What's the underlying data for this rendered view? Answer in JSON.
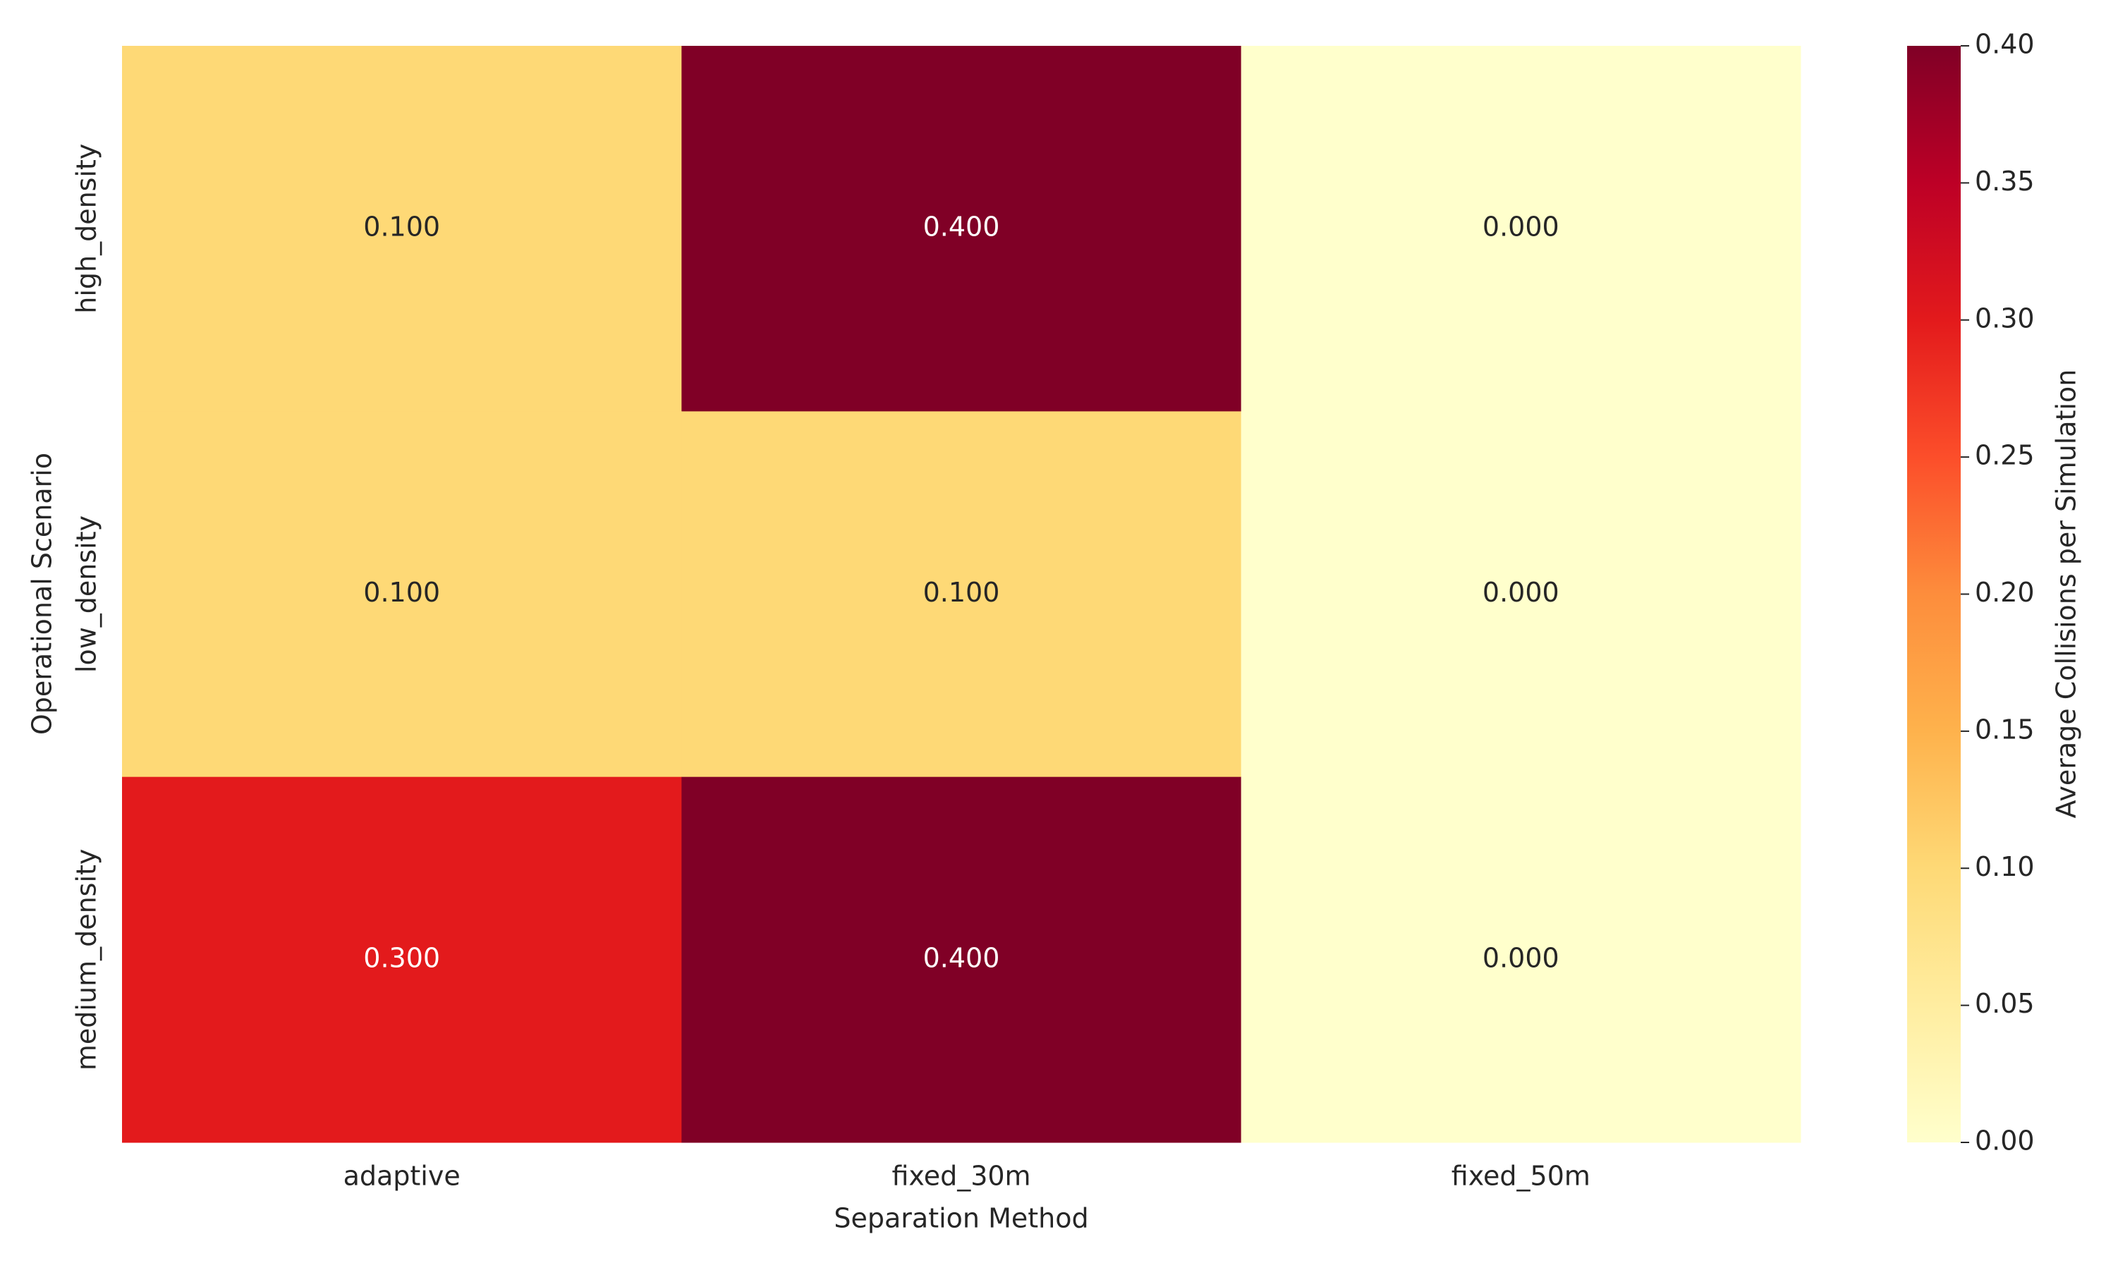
{
  "chart_data": {
    "type": "heatmap",
    "x_label": "Separation Method",
    "y_label": "Operational Scenario",
    "colorbar_label": "Average Collisions per Simulation",
    "categories": [
      "adaptive",
      "fixed_30m",
      "fixed_50m"
    ],
    "y_categories": [
      "high_density",
      "low_density",
      "medium_density"
    ],
    "values": [
      [
        0.1,
        0.4,
        0.0
      ],
      [
        0.1,
        0.1,
        0.0
      ],
      [
        0.3,
        0.4,
        0.0
      ]
    ],
    "value_labels": [
      [
        "0.100",
        "0.400",
        "0.000"
      ],
      [
        "0.100",
        "0.100",
        "0.000"
      ],
      [
        "0.300",
        "0.400",
        "0.000"
      ]
    ],
    "colorscale": [
      "#ffffcc",
      "#ffeda0",
      "#fed976",
      "#feb24c",
      "#fd8d3c",
      "#fc4e2a",
      "#e31a1c",
      "#bd0026",
      "#800026"
    ],
    "zlim": [
      0,
      0.4
    ],
    "zticks": [
      {
        "value": 0,
        "label": "0.00"
      },
      {
        "value": 0.05,
        "label": "0.05"
      },
      {
        "value": 0.1,
        "label": "0.10"
      },
      {
        "value": 0.15,
        "label": "0.15"
      },
      {
        "value": 0.2,
        "label": "0.20"
      },
      {
        "value": 0.25,
        "label": "0.25"
      },
      {
        "value": 0.3,
        "label": "0.30"
      },
      {
        "value": 0.35,
        "label": "0.35"
      },
      {
        "value": 0.4,
        "label": "0.40"
      }
    ]
  }
}
